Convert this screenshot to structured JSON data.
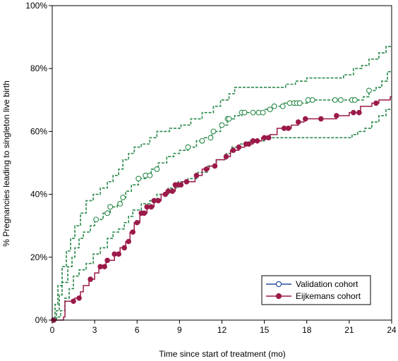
{
  "chart_data": {
    "type": "line",
    "title": "",
    "xlabel": "Time since start of treatment (mo)",
    "ylabel": "% Pregnancies leading to singleton live birth",
    "xlim": [
      0,
      24
    ],
    "ylim": [
      0,
      100
    ],
    "x_ticks": [
      0,
      3,
      6,
      9,
      12,
      15,
      18,
      21,
      24
    ],
    "x_tick_labels": [
      "0",
      "3",
      "6",
      "9",
      "12",
      "15",
      "18",
      "21",
      "24"
    ],
    "y_ticks": [
      0,
      20,
      40,
      60,
      80,
      100
    ],
    "y_tick_labels": [
      "0%",
      "20%",
      "40%",
      "60%",
      "80%",
      "100%"
    ],
    "grid": false,
    "legend": {
      "placement": "bottom-right",
      "entries": [
        "Validation cohort",
        "Eijkemans cohort"
      ]
    },
    "colors": {
      "validation": "#2a4fa0",
      "eijkemans": "#9b1a4a",
      "ci": "#2a8a4a"
    },
    "series": [
      {
        "name": "Validation cohort",
        "style": "step-solid-open-circles",
        "steps": [
          [
            0,
            0
          ],
          [
            0.3,
            3
          ],
          [
            0.5,
            8
          ],
          [
            0.7,
            12
          ],
          [
            1.1,
            17
          ],
          [
            1.4,
            20
          ],
          [
            1.6,
            23
          ],
          [
            1.9,
            26
          ],
          [
            2.2,
            28
          ],
          [
            2.7,
            30
          ],
          [
            3.0,
            32
          ],
          [
            3.6,
            34
          ],
          [
            4.1,
            36
          ],
          [
            4.6,
            37
          ],
          [
            4.9,
            39
          ],
          [
            5.2,
            41
          ],
          [
            5.6,
            43
          ],
          [
            6.1,
            45
          ],
          [
            6.6,
            46
          ],
          [
            7.0,
            48
          ],
          [
            7.5,
            50
          ],
          [
            8.1,
            52
          ],
          [
            8.6,
            53
          ],
          [
            9.0,
            54
          ],
          [
            9.6,
            55
          ],
          [
            10.2,
            57
          ],
          [
            10.7,
            58
          ],
          [
            11.3,
            60
          ],
          [
            11.9,
            62
          ],
          [
            12.4,
            64
          ],
          [
            12.9,
            65
          ],
          [
            13.4,
            66
          ],
          [
            14.4,
            66
          ],
          [
            15.0,
            67
          ],
          [
            15.6,
            68
          ],
          [
            16.4,
            69
          ],
          [
            17.4,
            69
          ],
          [
            18.1,
            70
          ],
          [
            20.0,
            70
          ],
          [
            21.3,
            70
          ],
          [
            22.0,
            71
          ],
          [
            22.4,
            73
          ],
          [
            22.9,
            74
          ],
          [
            23.3,
            76
          ],
          [
            23.7,
            79
          ],
          [
            24,
            79
          ]
        ],
        "markers_x": [
          0.1,
          3.1,
          3.9,
          4.1,
          4.8,
          5.0,
          6.1,
          6.6,
          6.9,
          7.4,
          9.6,
          10.6,
          11.2,
          11.4,
          12.0,
          12.4,
          12.5,
          13.4,
          13.6,
          14.2,
          14.6,
          14.9,
          15.4,
          15.7,
          16.3,
          16.8,
          17.1,
          17.3,
          17.5,
          18.1,
          18.4,
          20.0,
          20.4,
          21.2,
          21.4,
          22.4
        ]
      },
      {
        "name": "Eijkemans cohort",
        "style": "step-solid-filled-dots",
        "steps": [
          [
            0,
            0
          ],
          [
            0.8,
            1
          ],
          [
            0.9,
            6
          ],
          [
            1.6,
            7
          ],
          [
            2.0,
            9
          ],
          [
            2.2,
            11
          ],
          [
            2.6,
            13
          ],
          [
            3.0,
            15
          ],
          [
            3.3,
            17
          ],
          [
            3.8,
            19
          ],
          [
            4.4,
            21
          ],
          [
            4.8,
            23
          ],
          [
            5.2,
            25
          ],
          [
            5.5,
            28
          ],
          [
            5.8,
            31
          ],
          [
            6.2,
            34
          ],
          [
            6.7,
            36
          ],
          [
            7.2,
            38
          ],
          [
            7.7,
            40
          ],
          [
            8.1,
            41
          ],
          [
            8.7,
            43
          ],
          [
            9.2,
            44
          ],
          [
            10.1,
            46
          ],
          [
            10.6,
            48
          ],
          [
            11.1,
            49
          ],
          [
            11.6,
            51
          ],
          [
            12.2,
            52
          ],
          [
            12.6,
            54
          ],
          [
            13.2,
            55
          ],
          [
            13.6,
            56
          ],
          [
            14.2,
            57
          ],
          [
            14.8,
            58
          ],
          [
            15.4,
            59
          ],
          [
            15.9,
            61
          ],
          [
            16.9,
            62
          ],
          [
            17.4,
            63
          ],
          [
            17.8,
            64
          ],
          [
            19.0,
            64
          ],
          [
            20.1,
            65
          ],
          [
            21.0,
            66
          ],
          [
            21.8,
            68
          ],
          [
            22.6,
            69
          ],
          [
            23.1,
            70
          ],
          [
            23.9,
            71
          ],
          [
            24,
            71
          ]
        ],
        "markers_x": [
          0.1,
          1.5,
          1.9,
          2.7,
          3.4,
          3.7,
          3.9,
          4.4,
          4.7,
          5.1,
          5.4,
          5.7,
          6.0,
          6.3,
          6.5,
          6.7,
          7.0,
          7.2,
          7.5,
          8.0,
          8.2,
          8.5,
          8.7,
          8.9,
          9.1,
          9.5,
          10.2,
          10.9,
          11.5,
          12.3,
          12.8,
          13.2,
          13.7,
          13.9,
          14.2,
          14.5,
          15.0,
          15.3,
          16.4,
          16.7,
          17.4,
          17.9,
          19.0,
          20.1,
          21.3,
          21.7,
          22.9
        ]
      },
      {
        "name": "",
        "style": "step-dashed-ci-upper",
        "steps": [
          [
            0,
            0
          ],
          [
            0.2,
            5
          ],
          [
            0.4,
            11
          ],
          [
            0.7,
            17
          ],
          [
            1.0,
            22
          ],
          [
            1.3,
            26
          ],
          [
            1.6,
            30
          ],
          [
            2.0,
            34
          ],
          [
            2.4,
            38
          ],
          [
            2.9,
            40
          ],
          [
            3.4,
            42
          ],
          [
            3.9,
            44
          ],
          [
            4.3,
            46
          ],
          [
            4.7,
            48
          ],
          [
            5.0,
            51
          ],
          [
            5.4,
            53
          ],
          [
            5.8,
            55
          ],
          [
            6.3,
            56
          ],
          [
            6.9,
            58
          ],
          [
            7.4,
            60
          ],
          [
            8.3,
            61
          ],
          [
            9.1,
            62
          ],
          [
            9.8,
            64
          ],
          [
            10.6,
            66
          ],
          [
            11.4,
            68
          ],
          [
            11.9,
            70
          ],
          [
            12.5,
            72
          ],
          [
            12.9,
            74
          ],
          [
            15.9,
            74
          ],
          [
            16.5,
            75
          ],
          [
            17.2,
            76
          ],
          [
            18.0,
            77
          ],
          [
            20.6,
            78
          ],
          [
            21.3,
            80
          ],
          [
            21.9,
            81
          ],
          [
            22.4,
            83
          ],
          [
            23.1,
            85
          ],
          [
            23.6,
            87
          ],
          [
            24,
            87
          ]
        ]
      },
      {
        "name": "",
        "style": "step-dashed-ci-lower",
        "steps": [
          [
            0,
            0
          ],
          [
            0.3,
            1
          ],
          [
            0.6,
            3
          ],
          [
            0.9,
            7
          ],
          [
            1.2,
            10
          ],
          [
            1.5,
            14
          ],
          [
            1.9,
            16
          ],
          [
            2.4,
            18
          ],
          [
            2.9,
            21
          ],
          [
            3.4,
            23
          ],
          [
            3.9,
            26
          ],
          [
            4.3,
            28
          ],
          [
            4.7,
            29
          ],
          [
            5.1,
            31
          ],
          [
            5.4,
            33
          ],
          [
            5.7,
            35
          ],
          [
            6.3,
            37
          ],
          [
            6.9,
            38
          ],
          [
            7.4,
            40
          ],
          [
            8.2,
            42
          ],
          [
            8.9,
            44
          ],
          [
            9.6,
            45
          ],
          [
            10.3,
            47
          ],
          [
            11.0,
            49
          ],
          [
            11.6,
            51
          ],
          [
            12.3,
            53
          ],
          [
            12.7,
            55
          ],
          [
            13.3,
            56
          ],
          [
            14.0,
            57
          ],
          [
            15.0,
            58
          ],
          [
            16.3,
            58
          ],
          [
            18.0,
            58
          ],
          [
            19.0,
            58
          ],
          [
            21.2,
            59
          ],
          [
            21.6,
            60
          ],
          [
            22.1,
            61
          ],
          [
            22.6,
            63
          ],
          [
            23.1,
            65
          ],
          [
            23.6,
            67
          ],
          [
            24,
            67
          ]
        ]
      }
    ]
  }
}
